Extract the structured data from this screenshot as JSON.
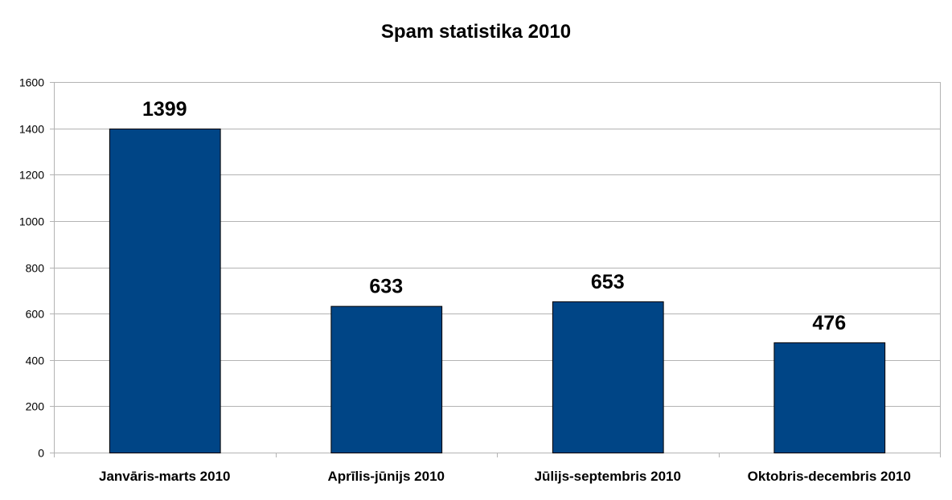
{
  "chart_data": {
    "type": "bar",
    "title": "Spam statistika 2010",
    "xlabel": "",
    "ylabel": "",
    "categories": [
      "Janvāris-marts 2010",
      "Aprīlis-jūnijs 2010",
      "Jūlijs-septembris 2010",
      "Oktobris-decembris 2010"
    ],
    "values": [
      1399,
      633,
      653,
      476
    ],
    "ylim": [
      0,
      1600
    ],
    "yticks": [
      0,
      200,
      400,
      600,
      800,
      1000,
      1200,
      1400,
      1600
    ],
    "grid": true,
    "legend": "none",
    "bar_color": "#004586",
    "bar_border_color": "#000000",
    "grid_color": "#b3b3b3"
  }
}
